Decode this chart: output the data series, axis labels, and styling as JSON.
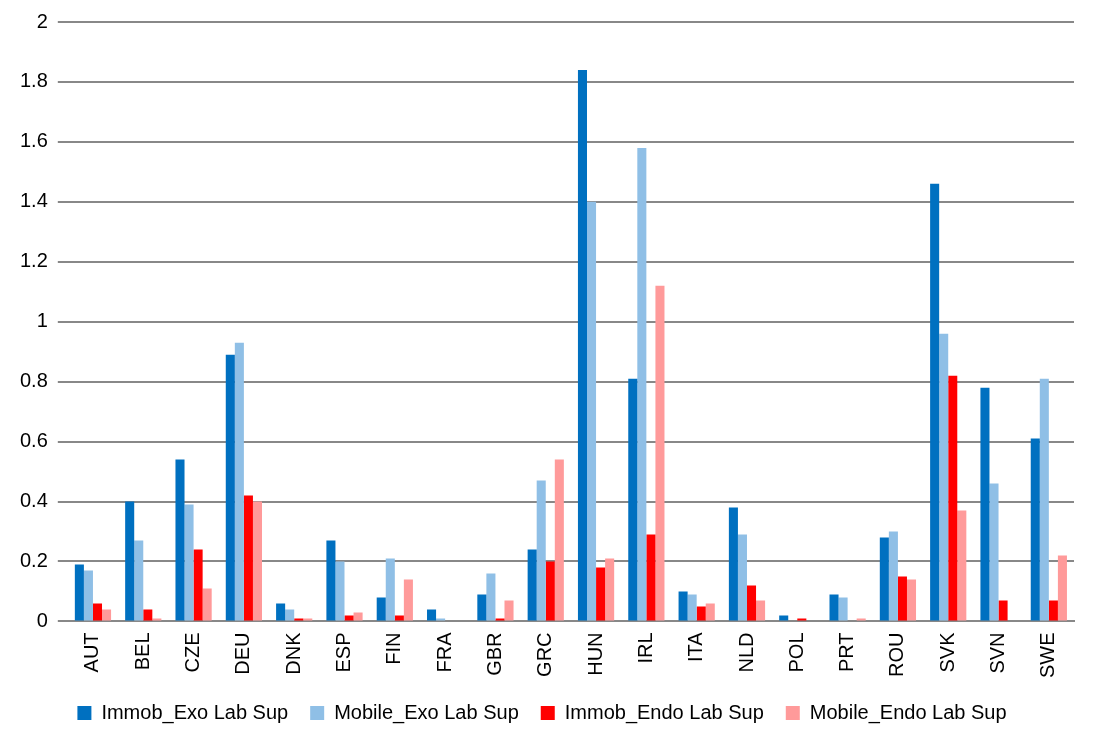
{
  "chart_data": {
    "type": "bar",
    "categories": [
      "AUT",
      "BEL",
      "CZE",
      "DEU",
      "DNK",
      "ESP",
      "FIN",
      "FRA",
      "GBR",
      "GRC",
      "HUN",
      "IRL",
      "ITA",
      "NLD",
      "POL",
      "PRT",
      "ROU",
      "SVK",
      "SVN",
      "SWE"
    ],
    "series": [
      {
        "name": "Immob_Exo Lab Sup",
        "color": "#0070c0",
        "values": [
          0.19,
          0.4,
          0.54,
          0.89,
          0.06,
          0.27,
          0.08,
          0.04,
          0.09,
          0.24,
          1.84,
          0.81,
          0.1,
          0.38,
          0.02,
          0.09,
          0.28,
          1.46,
          0.78,
          0.61
        ]
      },
      {
        "name": "Mobile_Exo Lab Sup",
        "color": "#8fbfe6",
        "values": [
          0.17,
          0.27,
          0.39,
          0.93,
          0.04,
          0.2,
          0.21,
          0.01,
          0.16,
          0.47,
          1.4,
          1.58,
          0.09,
          0.29,
          0,
          0.08,
          0.3,
          0.96,
          0.46,
          0.81
        ]
      },
      {
        "name": "Immob_Endo Lab Sup",
        "color": "#ff0000",
        "values": [
          0.06,
          0.04,
          0.24,
          0.42,
          0.01,
          0.02,
          0.02,
          0,
          0.01,
          0.2,
          0.18,
          0.29,
          0.05,
          0.12,
          0.01,
          0,
          0.15,
          0.82,
          0.07,
          0.07
        ]
      },
      {
        "name": "Mobile_Endo Lab Sup",
        "color": "#ff9a9a",
        "values": [
          0.04,
          0.01,
          0.11,
          0.4,
          0.01,
          0.03,
          0.14,
          0,
          0.07,
          0.54,
          0.21,
          1.12,
          0.06,
          0.07,
          0,
          0.01,
          0.14,
          0.37,
          0,
          0.22
        ]
      }
    ],
    "ylim": [
      0,
      2
    ],
    "yticks": [
      0,
      0.2,
      0.4,
      0.6,
      0.8,
      1,
      1.2,
      1.4,
      1.6,
      1.8,
      2
    ],
    "grid": "y",
    "legend": "bottom"
  }
}
